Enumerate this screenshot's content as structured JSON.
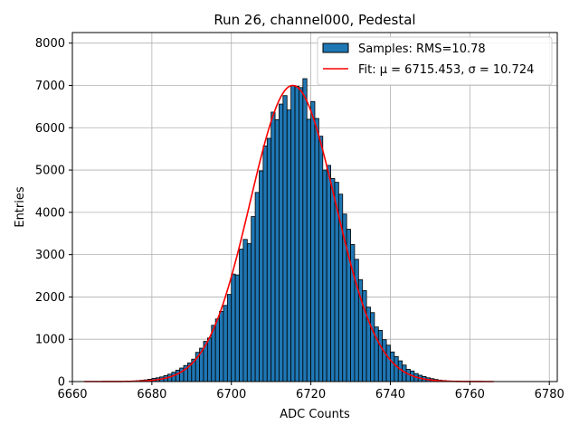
{
  "chart_data": {
    "type": "histogram",
    "title": "Run 26, channel000, Pedestal",
    "xlabel": "ADC Counts",
    "ylabel": "Entries",
    "xlim": [
      6660,
      6782
    ],
    "ylim": [
      0,
      8250
    ],
    "xticks": [
      6660,
      6680,
      6700,
      6720,
      6740,
      6760,
      6780
    ],
    "yticks": [
      0,
      1000,
      2000,
      3000,
      4000,
      5000,
      6000,
      7000,
      8000
    ],
    "grid": true,
    "legend_position": "top-right",
    "bin_width": 1,
    "bins": [
      [
        6674,
        10
      ],
      [
        6675,
        15
      ],
      [
        6676,
        20
      ],
      [
        6677,
        30
      ],
      [
        6678,
        40
      ],
      [
        6679,
        55
      ],
      [
        6680,
        75
      ],
      [
        6681,
        90
      ],
      [
        6682,
        110
      ],
      [
        6683,
        140
      ],
      [
        6684,
        175
      ],
      [
        6685,
        220
      ],
      [
        6686,
        270
      ],
      [
        6687,
        320
      ],
      [
        6688,
        380
      ],
      [
        6689,
        440
      ],
      [
        6690,
        530
      ],
      [
        6691,
        690
      ],
      [
        6692,
        790
      ],
      [
        6693,
        950
      ],
      [
        6694,
        1030
      ],
      [
        6695,
        1330
      ],
      [
        6696,
        1480
      ],
      [
        6697,
        1660
      ],
      [
        6698,
        1800
      ],
      [
        6699,
        2060
      ],
      [
        6700,
        2540
      ],
      [
        6701,
        2520
      ],
      [
        6702,
        3130
      ],
      [
        6703,
        3360
      ],
      [
        6704,
        3260
      ],
      [
        6705,
        3900
      ],
      [
        6706,
        4470
      ],
      [
        6707,
        4980
      ],
      [
        6708,
        5570
      ],
      [
        6709,
        5750
      ],
      [
        6710,
        6370
      ],
      [
        6711,
        6190
      ],
      [
        6712,
        6560
      ],
      [
        6713,
        6760
      ],
      [
        6714,
        6420
      ],
      [
        6715,
        7000
      ],
      [
        6716,
        6980
      ],
      [
        6717,
        6950
      ],
      [
        6718,
        7160
      ],
      [
        6719,
        6200
      ],
      [
        6720,
        6620
      ],
      [
        6721,
        6220
      ],
      [
        6722,
        5800
      ],
      [
        6723,
        5000
      ],
      [
        6724,
        5110
      ],
      [
        6725,
        4800
      ],
      [
        6726,
        4710
      ],
      [
        6727,
        4430
      ],
      [
        6728,
        3960
      ],
      [
        6729,
        3600
      ],
      [
        6730,
        3240
      ],
      [
        6731,
        2890
      ],
      [
        6732,
        2410
      ],
      [
        6733,
        2150
      ],
      [
        6734,
        1760
      ],
      [
        6735,
        1630
      ],
      [
        6736,
        1290
      ],
      [
        6737,
        1210
      ],
      [
        6738,
        990
      ],
      [
        6739,
        860
      ],
      [
        6740,
        700
      ],
      [
        6741,
        590
      ],
      [
        6742,
        490
      ],
      [
        6743,
        390
      ],
      [
        6744,
        290
      ],
      [
        6745,
        250
      ],
      [
        6746,
        190
      ],
      [
        6747,
        150
      ],
      [
        6748,
        120
      ],
      [
        6749,
        90
      ],
      [
        6750,
        70
      ],
      [
        6751,
        50
      ],
      [
        6752,
        35
      ],
      [
        6753,
        25
      ],
      [
        6754,
        15
      ],
      [
        6755,
        10
      ]
    ],
    "series": [
      {
        "name": "Samples: RMS=10.78",
        "kind": "histogram",
        "color": "#1f77b4",
        "edge_color": "#000000"
      },
      {
        "name": "Fit: μ = 6715.453, σ = 10.724",
        "kind": "gaussian",
        "color": "#ff0000",
        "mu": 6715.453,
        "sigma": 10.724,
        "amplitude": 7000,
        "x_range": [
          6663,
          6766
        ]
      }
    ]
  }
}
